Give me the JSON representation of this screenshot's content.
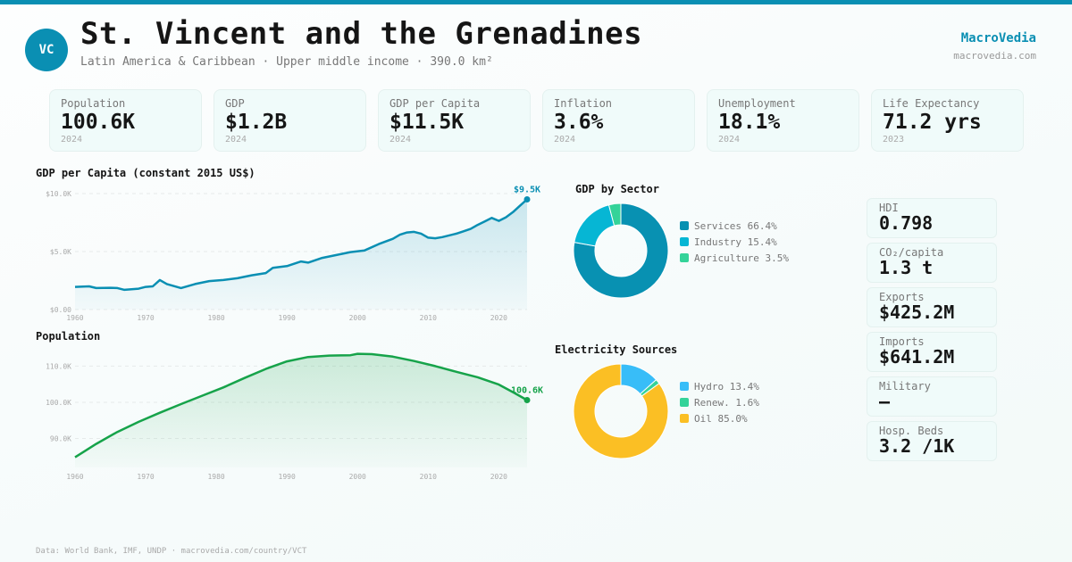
{
  "header": {
    "avatar": "VC",
    "title": "St. Vincent and the Grenadines",
    "subtitle": "Latin America & Caribbean · Upper middle income · 390.0 km²",
    "brand": "MacroVedia",
    "brand_url": "macrovedia.com"
  },
  "kpis": [
    {
      "label": "Population",
      "value": "100.6K",
      "year": "2024"
    },
    {
      "label": "GDP",
      "value": "$1.2B",
      "year": "2024"
    },
    {
      "label": "GDP per Capita",
      "value": "$11.5K",
      "year": "2024"
    },
    {
      "label": "Inflation",
      "value": "3.6%",
      "year": "2024"
    },
    {
      "label": "Unemployment",
      "value": "18.1%",
      "year": "2024"
    },
    {
      "label": "Life Expectancy",
      "value": "71.2 yrs",
      "year": "2023"
    }
  ],
  "side_stats": [
    {
      "label": "HDI",
      "value": "0.798"
    },
    {
      "label": "CO₂/capita",
      "value": "1.3 t"
    },
    {
      "label": "Exports",
      "value": "$425.2M"
    },
    {
      "label": "Imports",
      "value": "$641.2M"
    },
    {
      "label": "Military",
      "value": "—"
    },
    {
      "label": "Hosp. Beds",
      "value": "3.2 /1K"
    }
  ],
  "colors": {
    "accent": "#0a8fb3",
    "population_line": "#16a34a",
    "services": "#0891b2",
    "industry": "#06b6d4",
    "agriculture": "#34d399",
    "hydro": "#38bdf8",
    "renewables": "#34d399",
    "oil": "#fbbf24"
  },
  "footer": "Data: World Bank, IMF, UNDP · macrovedia.com/country/VCT",
  "chart_data": [
    {
      "type": "area",
      "title": "GDP per Capita (constant 2015 US$)",
      "ylim": [
        0,
        10000
      ],
      "yticks": [
        "$0.00",
        "$5.0K",
        "$10.0K"
      ],
      "ytick_values": [
        0,
        5000,
        10000
      ],
      "xticks": [
        1960,
        1970,
        1980,
        1990,
        2000,
        2010,
        2020
      ],
      "end_label": "$9.5K",
      "x": [
        1960,
        1962,
        1963,
        1965,
        1966,
        1967,
        1969,
        1970,
        1971,
        1972,
        1973,
        1975,
        1977,
        1979,
        1981,
        1983,
        1985,
        1987,
        1988,
        1990,
        1992,
        1993,
        1995,
        1997,
        1999,
        2001,
        2003,
        2005,
        2006,
        2007,
        2008,
        2009,
        2010,
        2011,
        2012,
        2014,
        2015,
        2016,
        2017,
        2018,
        2019,
        2020,
        2021,
        2022,
        2023,
        2024
      ],
      "values": [
        1950,
        2000,
        1850,
        1880,
        1850,
        1700,
        1800,
        1950,
        2000,
        2550,
        2200,
        1850,
        2200,
        2450,
        2550,
        2700,
        2950,
        3150,
        3600,
        3750,
        4150,
        4050,
        4450,
        4700,
        4950,
        5100,
        5650,
        6100,
        6450,
        6650,
        6700,
        6550,
        6200,
        6150,
        6250,
        6550,
        6750,
        6950,
        7300,
        7600,
        7900,
        7650,
        7950,
        8400,
        8950,
        9500
      ]
    },
    {
      "type": "area",
      "title": "Population",
      "ylim": [
        82000,
        116000
      ],
      "yticks": [
        "90.0K",
        "100.0K",
        "110.0K"
      ],
      "ytick_values": [
        90000,
        100000,
        110000
      ],
      "xticks": [
        1960,
        1970,
        1980,
        1990,
        2000,
        2010,
        2020
      ],
      "end_label": "100.6K",
      "x": [
        1960,
        1963,
        1966,
        1969,
        1972,
        1975,
        1978,
        1981,
        1984,
        1987,
        1990,
        1993,
        1996,
        1999,
        2000,
        2002,
        2005,
        2008,
        2011,
        2014,
        2017,
        2020,
        2022,
        2024
      ],
      "values": [
        84800,
        88500,
        91800,
        94600,
        97100,
        99500,
        101800,
        104100,
        106700,
        109200,
        111300,
        112500,
        112900,
        113000,
        113400,
        113300,
        112600,
        111400,
        110000,
        108400,
        106900,
        104900,
        102800,
        100600
      ]
    },
    {
      "type": "pie",
      "title": "GDP by Sector",
      "labels": [
        "Services",
        "Industry",
        "Agriculture"
      ],
      "values": [
        66.4,
        15.4,
        3.5
      ],
      "legend": [
        "Services 66.4%",
        "Industry 15.4%",
        "Agriculture 3.5%"
      ]
    },
    {
      "type": "pie",
      "title": "Electricity Sources",
      "labels": [
        "Hydro",
        "Renew.",
        "Oil"
      ],
      "values": [
        13.4,
        1.6,
        85.0
      ],
      "legend": [
        "Hydro 13.4%",
        "Renew. 1.6%",
        "Oil 85.0%"
      ]
    }
  ]
}
